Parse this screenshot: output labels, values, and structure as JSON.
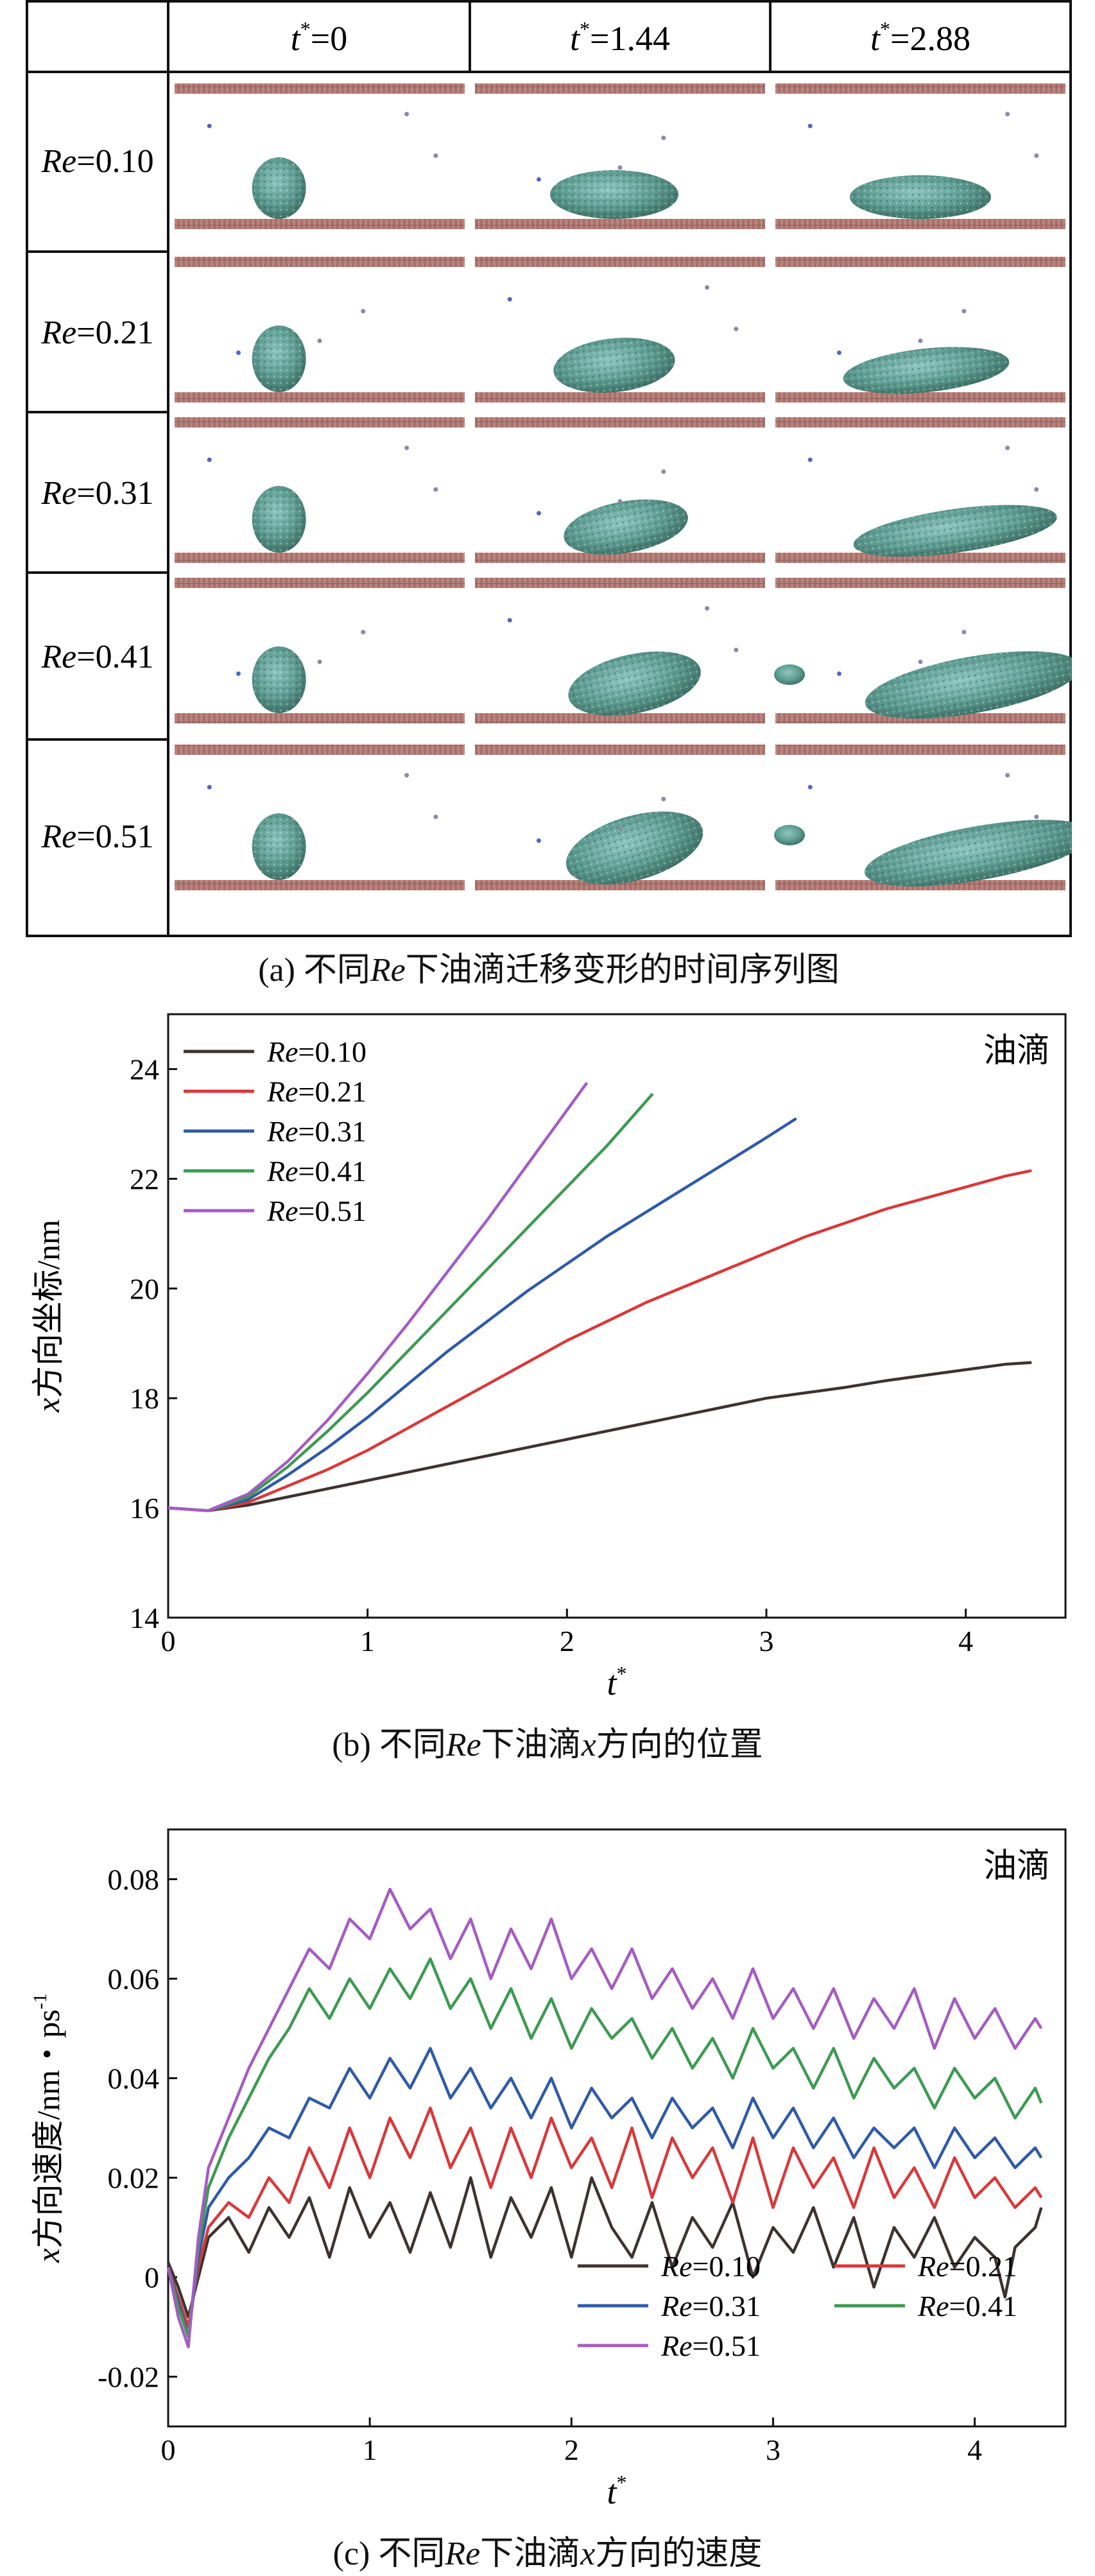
{
  "panel_a": {
    "column_headers": [
      {
        "var": "t",
        "sup": "*",
        "rest": "=0"
      },
      {
        "var": "t",
        "sup": "*",
        "rest": "=1.44"
      },
      {
        "var": "t",
        "sup": "*",
        "rest": "=2.88"
      }
    ],
    "row_labels": [
      {
        "var": "Re",
        "rest": "=0.10"
      },
      {
        "var": "Re",
        "rest": "=0.21"
      },
      {
        "var": "Re",
        "rest": "=0.31"
      },
      {
        "var": "Re",
        "rest": "=0.41"
      },
      {
        "var": "Re",
        "rest": "=0.51"
      }
    ],
    "caption": {
      "pre": "(a) 不同",
      "var": "Re",
      "post": "下油滴迁移变形的时间序列图"
    }
  },
  "chart_data": [
    {
      "type": "line",
      "annotation": "油滴",
      "ylabel": {
        "var": "x",
        "rest": "方向坐标/nm"
      },
      "xlabel": {
        "var": "t",
        "sup": "*"
      },
      "xlim": [
        0,
        4.5
      ],
      "ylim": [
        14,
        25
      ],
      "xticks": [
        "0",
        "1",
        "2",
        "3",
        "4"
      ],
      "yticks": [
        "14",
        "16",
        "18",
        "20",
        "22",
        "24"
      ],
      "legend_position": "top-left",
      "caption": {
        "pre": "(b) 不同",
        "var": "Re",
        "mid": "下油滴",
        "var2": "x",
        "post": "方向的位置"
      },
      "series": [
        {
          "name": "Re=0.10",
          "color": "#3d3330",
          "x": [
            0,
            0.2,
            0.4,
            0.6,
            0.8,
            1.0,
            1.2,
            1.4,
            1.6,
            1.8,
            2.0,
            2.2,
            2.4,
            2.6,
            2.8,
            3.0,
            3.2,
            3.4,
            3.6,
            3.8,
            4.0,
            4.2,
            4.33
          ],
          "y": [
            16.0,
            15.95,
            16.05,
            16.2,
            16.35,
            16.5,
            16.65,
            16.8,
            16.95,
            17.1,
            17.25,
            17.4,
            17.55,
            17.7,
            17.85,
            18.0,
            18.1,
            18.2,
            18.32,
            18.42,
            18.52,
            18.62,
            18.65
          ]
        },
        {
          "name": "Re=0.21",
          "color": "#d9383a",
          "x": [
            0,
            0.2,
            0.4,
            0.6,
            0.8,
            1.0,
            1.2,
            1.4,
            1.6,
            1.8,
            2.0,
            2.2,
            2.4,
            2.6,
            2.8,
            3.0,
            3.2,
            3.4,
            3.6,
            3.8,
            4.0,
            4.2,
            4.33
          ],
          "y": [
            16.0,
            15.95,
            16.1,
            16.4,
            16.7,
            17.05,
            17.45,
            17.85,
            18.25,
            18.65,
            19.05,
            19.4,
            19.75,
            20.05,
            20.35,
            20.65,
            20.95,
            21.2,
            21.45,
            21.65,
            21.85,
            22.05,
            22.15
          ]
        },
        {
          "name": "Re=0.31",
          "color": "#2f5aa8",
          "x": [
            0,
            0.2,
            0.4,
            0.6,
            0.8,
            1.0,
            1.2,
            1.4,
            1.6,
            1.8,
            2.0,
            2.2,
            2.4,
            2.6,
            2.8,
            3.0,
            3.15
          ],
          "y": [
            16.0,
            15.95,
            16.15,
            16.6,
            17.1,
            17.65,
            18.25,
            18.85,
            19.4,
            19.95,
            20.45,
            20.95,
            21.4,
            21.85,
            22.3,
            22.75,
            23.1
          ]
        },
        {
          "name": "Re=0.41",
          "color": "#3d9a52",
          "x": [
            0,
            0.2,
            0.4,
            0.6,
            0.8,
            1.0,
            1.2,
            1.4,
            1.6,
            1.8,
            2.0,
            2.2,
            2.43
          ],
          "y": [
            16.0,
            15.95,
            16.2,
            16.75,
            17.4,
            18.1,
            18.85,
            19.6,
            20.35,
            21.1,
            21.85,
            22.6,
            23.55
          ]
        },
        {
          "name": "Re=0.51",
          "color": "#a45cc2",
          "x": [
            0,
            0.2,
            0.4,
            0.6,
            0.8,
            1.0,
            1.2,
            1.4,
            1.6,
            1.8,
            2.0,
            2.1
          ],
          "y": [
            16.0,
            15.95,
            16.25,
            16.85,
            17.6,
            18.45,
            19.35,
            20.3,
            21.25,
            22.25,
            23.25,
            23.75
          ]
        }
      ]
    },
    {
      "type": "line",
      "annotation": "油滴",
      "ylabel": {
        "var": "x",
        "rest": "方向速度/nm・ps",
        "sup": "-1"
      },
      "xlabel": {
        "var": "t",
        "sup": "*"
      },
      "xlim": [
        0,
        4.45
      ],
      "ylim": [
        -0.03,
        0.09
      ],
      "xticks": [
        "0",
        "1",
        "2",
        "3",
        "4"
      ],
      "yticks": [
        "-0.02",
        "0",
        "0.02",
        "0.04",
        "0.06",
        "0.08"
      ],
      "legend_position": "bottom-right",
      "caption": {
        "pre": "(c) 不同",
        "var": "Re",
        "mid": "下油滴",
        "var2": "x",
        "post": "方向的速度"
      },
      "series": [
        {
          "name": "Re=0.10",
          "color": "#3d3330",
          "x": [
            0,
            0.05,
            0.1,
            0.15,
            0.2,
            0.3,
            0.4,
            0.5,
            0.6,
            0.7,
            0.8,
            0.9,
            1.0,
            1.1,
            1.2,
            1.3,
            1.4,
            1.5,
            1.6,
            1.7,
            1.8,
            1.9,
            2.0,
            2.1,
            2.2,
            2.3,
            2.4,
            2.5,
            2.6,
            2.7,
            2.8,
            2.9,
            3.0,
            3.1,
            3.2,
            3.3,
            3.4,
            3.5,
            3.6,
            3.7,
            3.8,
            3.9,
            4.0,
            4.1,
            4.15,
            4.2,
            4.3,
            4.33
          ],
          "y": [
            0.003,
            -0.002,
            -0.008,
            0.0,
            0.008,
            0.012,
            0.005,
            0.014,
            0.008,
            0.016,
            0.004,
            0.018,
            0.008,
            0.015,
            0.005,
            0.017,
            0.006,
            0.02,
            0.004,
            0.016,
            0.008,
            0.018,
            0.004,
            0.02,
            0.01,
            0.004,
            0.015,
            0.002,
            0.012,
            0.006,
            0.015,
            0.0,
            0.01,
            0.005,
            0.014,
            0.002,
            0.012,
            -0.002,
            0.01,
            0.004,
            0.012,
            0.002,
            0.008,
            0.004,
            -0.004,
            0.006,
            0.01,
            0.014
          ]
        },
        {
          "name": "Re=0.21",
          "color": "#d9383a",
          "x": [
            0,
            0.05,
            0.1,
            0.15,
            0.2,
            0.3,
            0.4,
            0.5,
            0.6,
            0.7,
            0.8,
            0.9,
            1.0,
            1.1,
            1.2,
            1.3,
            1.4,
            1.5,
            1.6,
            1.7,
            1.8,
            1.9,
            2.0,
            2.1,
            2.2,
            2.3,
            2.4,
            2.5,
            2.6,
            2.7,
            2.8,
            2.9,
            3.0,
            3.1,
            3.2,
            3.3,
            3.4,
            3.5,
            3.6,
            3.7,
            3.8,
            3.9,
            4.0,
            4.1,
            4.2,
            4.3,
            4.33
          ],
          "y": [
            0.002,
            -0.004,
            -0.01,
            0.002,
            0.01,
            0.015,
            0.012,
            0.02,
            0.015,
            0.026,
            0.018,
            0.03,
            0.02,
            0.032,
            0.024,
            0.034,
            0.022,
            0.03,
            0.018,
            0.03,
            0.02,
            0.032,
            0.022,
            0.028,
            0.018,
            0.03,
            0.016,
            0.028,
            0.02,
            0.026,
            0.015,
            0.028,
            0.014,
            0.026,
            0.018,
            0.024,
            0.014,
            0.026,
            0.016,
            0.022,
            0.014,
            0.024,
            0.016,
            0.02,
            0.014,
            0.018,
            0.016
          ]
        },
        {
          "name": "Re=0.31",
          "color": "#2f5aa8",
          "x": [
            0,
            0.05,
            0.1,
            0.15,
            0.2,
            0.3,
            0.4,
            0.5,
            0.6,
            0.7,
            0.8,
            0.9,
            1.0,
            1.1,
            1.2,
            1.3,
            1.4,
            1.5,
            1.6,
            1.7,
            1.8,
            1.9,
            2.0,
            2.1,
            2.2,
            2.3,
            2.4,
            2.5,
            2.6,
            2.7,
            2.8,
            2.9,
            3.0,
            3.1,
            3.2,
            3.3,
            3.4,
            3.5,
            3.6,
            3.7,
            3.8,
            3.9,
            4.0,
            4.1,
            4.2,
            4.3,
            4.33
          ],
          "y": [
            0.002,
            -0.005,
            -0.012,
            0.004,
            0.014,
            0.02,
            0.024,
            0.03,
            0.028,
            0.036,
            0.034,
            0.042,
            0.036,
            0.044,
            0.038,
            0.046,
            0.036,
            0.042,
            0.034,
            0.04,
            0.032,
            0.04,
            0.03,
            0.038,
            0.032,
            0.036,
            0.028,
            0.036,
            0.03,
            0.034,
            0.026,
            0.036,
            0.028,
            0.034,
            0.026,
            0.032,
            0.024,
            0.03,
            0.026,
            0.03,
            0.022,
            0.03,
            0.024,
            0.028,
            0.022,
            0.026,
            0.024
          ]
        },
        {
          "name": "Re=0.41",
          "color": "#3d9a52",
          "x": [
            0,
            0.05,
            0.1,
            0.15,
            0.2,
            0.3,
            0.4,
            0.5,
            0.6,
            0.7,
            0.8,
            0.9,
            1.0,
            1.1,
            1.2,
            1.3,
            1.4,
            1.5,
            1.6,
            1.7,
            1.8,
            1.9,
            2.0,
            2.1,
            2.2,
            2.3,
            2.4,
            2.5,
            2.6,
            2.7,
            2.8,
            2.9,
            3.0,
            3.1,
            3.2,
            3.3,
            3.4,
            3.5,
            3.6,
            3.7,
            3.8,
            3.9,
            4.0,
            4.1,
            4.2,
            4.3,
            4.33
          ],
          "y": [
            0.002,
            -0.006,
            -0.012,
            0.006,
            0.018,
            0.028,
            0.036,
            0.044,
            0.05,
            0.058,
            0.052,
            0.06,
            0.054,
            0.062,
            0.056,
            0.064,
            0.054,
            0.06,
            0.05,
            0.058,
            0.048,
            0.056,
            0.046,
            0.054,
            0.048,
            0.052,
            0.044,
            0.05,
            0.042,
            0.048,
            0.04,
            0.05,
            0.042,
            0.046,
            0.038,
            0.046,
            0.036,
            0.044,
            0.038,
            0.042,
            0.034,
            0.042,
            0.036,
            0.04,
            0.032,
            0.038,
            0.035
          ]
        },
        {
          "name": "Re=0.51",
          "color": "#a45cc2",
          "x": [
            0,
            0.05,
            0.1,
            0.15,
            0.2,
            0.3,
            0.4,
            0.5,
            0.6,
            0.7,
            0.8,
            0.9,
            1.0,
            1.1,
            1.2,
            1.3,
            1.4,
            1.5,
            1.6,
            1.7,
            1.8,
            1.9,
            2.0,
            2.1,
            2.2,
            2.3,
            2.4,
            2.5,
            2.6,
            2.7,
            2.8,
            2.9,
            3.0,
            3.1,
            3.2,
            3.3,
            3.4,
            3.5,
            3.6,
            3.7,
            3.8,
            3.9,
            4.0,
            4.1,
            4.2,
            4.3,
            4.33
          ],
          "y": [
            0.002,
            -0.008,
            -0.014,
            0.008,
            0.022,
            0.032,
            0.042,
            0.05,
            0.058,
            0.066,
            0.062,
            0.072,
            0.068,
            0.078,
            0.07,
            0.074,
            0.064,
            0.072,
            0.06,
            0.07,
            0.062,
            0.072,
            0.06,
            0.066,
            0.058,
            0.066,
            0.056,
            0.062,
            0.054,
            0.06,
            0.052,
            0.062,
            0.052,
            0.058,
            0.05,
            0.058,
            0.048,
            0.056,
            0.05,
            0.058,
            0.046,
            0.056,
            0.048,
            0.054,
            0.046,
            0.052,
            0.05
          ]
        }
      ]
    }
  ]
}
